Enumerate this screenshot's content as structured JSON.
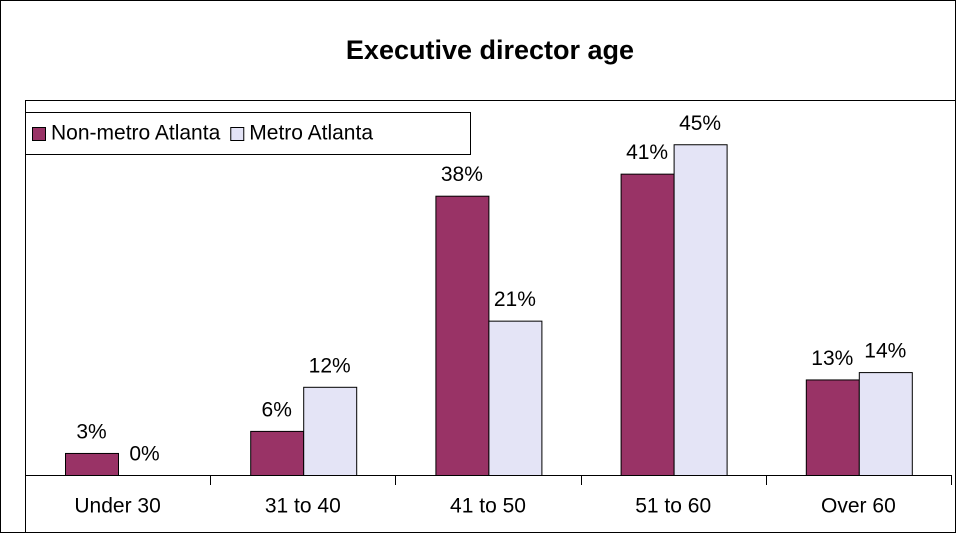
{
  "chart_data": {
    "type": "bar",
    "title": "Executive director age",
    "categories": [
      "Under 30",
      "31 to 40",
      "41 to 50",
      "51 to 60",
      "Over 60"
    ],
    "series": [
      {
        "name": "Non-metro Atlanta",
        "color": "#993366",
        "values": [
          3,
          6,
          38,
          41,
          13
        ],
        "value_labels": [
          "3%",
          "6%",
          "38%",
          "41%",
          "13%"
        ]
      },
      {
        "name": "Metro Atlanta",
        "color": "#e4e4f6",
        "values": [
          0,
          12,
          21,
          45,
          14
        ],
        "value_labels": [
          "0%",
          "12%",
          "21%",
          "45%",
          "14%"
        ]
      }
    ],
    "legend": "top-left"
  }
}
